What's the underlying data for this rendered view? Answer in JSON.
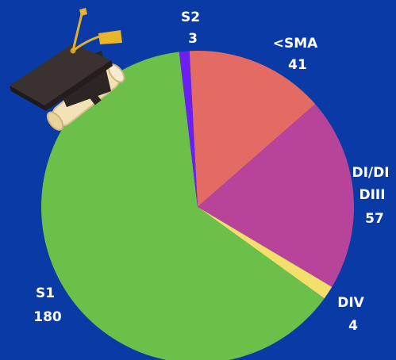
{
  "colors": {
    "background": "#0a3aa6",
    "label_text": "#ffffff"
  },
  "chart_data": {
    "type": "pie",
    "start_angle_deg": -3,
    "slices": [
      {
        "category": "<SMA",
        "value": 41,
        "color": "#e36b63"
      },
      {
        "category": "DI/DI DIII",
        "value": 57,
        "color": "#b8439b"
      },
      {
        "category": "DIV",
        "value": 4,
        "color": "#f4df6a"
      },
      {
        "category": "S1",
        "value": 180,
        "color": "#6cc04a"
      },
      {
        "category": "S2",
        "value": 3,
        "color": "#6b1ff0"
      }
    ],
    "labels": [
      {
        "lines": [
          "<SMA",
          "41"
        ]
      },
      {
        "lines": [
          "DI/DI",
          "DIII",
          "57"
        ]
      },
      {
        "lines": [
          "DIV",
          "4"
        ]
      },
      {
        "lines": [
          "S1",
          "180"
        ]
      },
      {
        "lines": [
          "S2",
          "3"
        ]
      }
    ]
  },
  "decoration": {
    "icon": "graduation-cap-and-diploma-icon"
  }
}
